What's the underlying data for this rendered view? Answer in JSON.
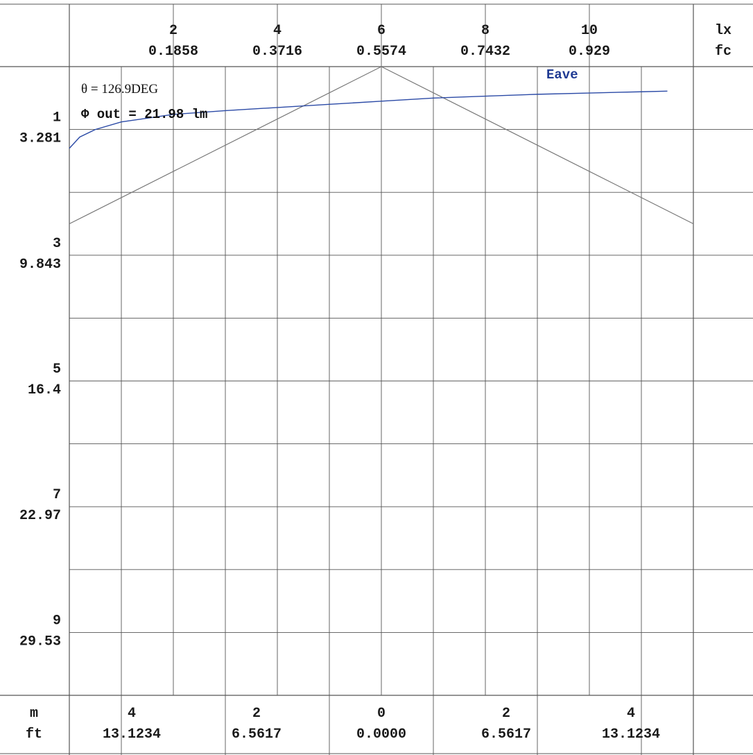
{
  "chart_data": {
    "type": "line",
    "colors": {
      "eave": "#2b4aa6",
      "beam": "#777777",
      "grid": "#555555"
    },
    "top_axis": {
      "unit_primary": "lx",
      "unit_secondary": "fc",
      "ticks": [
        {
          "lx": "2",
          "fc": "0.1858"
        },
        {
          "lx": "4",
          "fc": "0.3716"
        },
        {
          "lx": "6",
          "fc": "0.5574"
        },
        {
          "lx": "8",
          "fc": "0.7432"
        },
        {
          "lx": "10",
          "fc": "0.929"
        }
      ],
      "range": [
        0,
        12
      ]
    },
    "left_axis": {
      "ticks": [
        {
          "m": "1",
          "ft": "3.281"
        },
        {
          "m": "3",
          "ft": "9.843"
        },
        {
          "m": "5",
          "ft": "16.4"
        },
        {
          "m": "7",
          "ft": "22.97"
        },
        {
          "m": "9",
          "ft": "29.53"
        }
      ],
      "range": [
        0,
        10
      ]
    },
    "bottom_axis": {
      "unit_primary": "m",
      "unit_secondary": "ft",
      "ticks": [
        {
          "m": "4",
          "ft": "13.1234"
        },
        {
          "m": "2",
          "ft": "6.5617"
        },
        {
          "m": "0",
          "ft": "0.0000"
        },
        {
          "m": "2",
          "ft": "6.5617"
        },
        {
          "m": "4",
          "ft": "13.1234"
        }
      ],
      "range": [
        -5,
        5
      ]
    },
    "annotations": {
      "theta": "θ = 126.9DEG",
      "flux": "Φ out = 21.98 lm"
    },
    "series": [
      {
        "name": "Eave",
        "x_lx": [
          0,
          0.2,
          0.5,
          1,
          1.5,
          2,
          3,
          4,
          5,
          6,
          7,
          8,
          9,
          10,
          11,
          11.5
        ],
        "y_m": [
          1.3,
          1.12,
          1.0,
          0.88,
          0.82,
          0.76,
          0.7,
          0.65,
          0.6,
          0.55,
          0.5,
          0.47,
          0.44,
          0.42,
          0.4,
          0.39
        ]
      }
    ],
    "beam_outline": {
      "horizontal_m": [
        -5,
        0,
        5
      ],
      "depth_m": [
        2.5,
        0,
        2.5
      ]
    }
  }
}
